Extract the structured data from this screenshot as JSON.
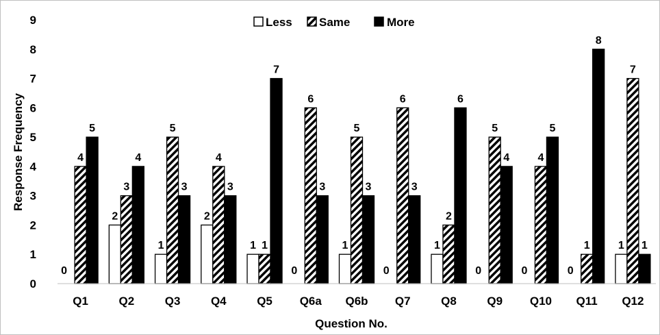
{
  "chart_data": {
    "type": "bar",
    "categories": [
      "Q1",
      "Q2",
      "Q3",
      "Q4",
      "Q5",
      "Q6a",
      "Q6b",
      "Q7",
      "Q8",
      "Q9",
      "Q10",
      "Q11",
      "Q12"
    ],
    "series": [
      {
        "name": "Less",
        "pattern": "solid-white",
        "values": [
          0,
          2,
          1,
          2,
          1,
          0,
          1,
          0,
          1,
          0,
          0,
          0,
          1
        ]
      },
      {
        "name": "Same",
        "pattern": "diagonal-hatch",
        "values": [
          4,
          3,
          5,
          4,
          1,
          6,
          5,
          6,
          2,
          5,
          4,
          1,
          7
        ]
      },
      {
        "name": "More",
        "pattern": "solid-black",
        "values": [
          5,
          4,
          3,
          3,
          7,
          3,
          3,
          3,
          6,
          4,
          5,
          8,
          1
        ]
      }
    ],
    "title": "",
    "xlabel": "Question No.",
    "ylabel": "Response Frequency",
    "ylim": [
      0,
      9
    ],
    "yticks": [
      "0",
      "1",
      "2",
      "3",
      "4",
      "5",
      "6",
      "7",
      "8",
      "9"
    ],
    "grid": false,
    "legend_position": "top-center",
    "data_labels": true,
    "colors": {
      "less_fill": "#ffffff",
      "more_fill": "#000000",
      "hatch": "#000000",
      "frame": "#bfbfbf"
    }
  }
}
